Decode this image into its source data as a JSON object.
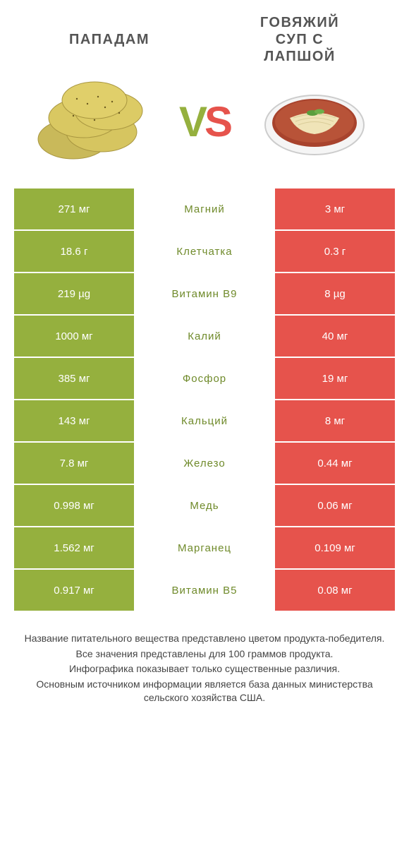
{
  "colors": {
    "left": "#95b03e",
    "right": "#e6534c",
    "leftDark": "#6f8a2a",
    "rightDark": "#c6362f",
    "nutrientWinnerLeft": "#6f8a2a",
    "nutrientWinnerRight": "#c6362f",
    "headerText": "#555555",
    "footerText": "#444444",
    "background": "#ffffff"
  },
  "header": {
    "leftTitle": "ПАПАДАМ",
    "rightTitleLine1": "ГОВЯЖИЙ",
    "rightTitleLine2": "СУП С",
    "rightTitleLine3": "ЛАПШОЙ",
    "vs": {
      "v": "V",
      "s": "S"
    }
  },
  "typography": {
    "headerFontSize": 20,
    "vsFontSize": 60,
    "cellFontSize": 15,
    "nutrientFontSize": 15,
    "footerFontSize": 14
  },
  "rows": [
    {
      "nutrient": "Магний",
      "left": "271 мг",
      "right": "3 мг",
      "winner": "left"
    },
    {
      "nutrient": "Клетчатка",
      "left": "18.6 г",
      "right": "0.3 г",
      "winner": "left"
    },
    {
      "nutrient": "Витамин B9",
      "left": "219 µg",
      "right": "8 µg",
      "winner": "left"
    },
    {
      "nutrient": "Калий",
      "left": "1000 мг",
      "right": "40 мг",
      "winner": "left"
    },
    {
      "nutrient": "Фосфор",
      "left": "385 мг",
      "right": "19 мг",
      "winner": "left"
    },
    {
      "nutrient": "Кальций",
      "left": "143 мг",
      "right": "8 мг",
      "winner": "left"
    },
    {
      "nutrient": "Железо",
      "left": "7.8 мг",
      "right": "0.44 мг",
      "winner": "left"
    },
    {
      "nutrient": "Медь",
      "left": "0.998 мг",
      "right": "0.06 мг",
      "winner": "left"
    },
    {
      "nutrient": "Марганец",
      "left": "1.562 мг",
      "right": "0.109 мг",
      "winner": "left"
    },
    {
      "nutrient": "Витамин B5",
      "left": "0.917 мг",
      "right": "0.08 мг",
      "winner": "left"
    }
  ],
  "footer": {
    "line1": "Название питательного вещества представлено цветом продукта-победителя.",
    "line2": "Все значения представлены для 100 граммов продукта.",
    "line3": "Инфографика показывает только существенные различия.",
    "line4": "Основным источником информации является база данных министерства сельского хозяйства США."
  }
}
